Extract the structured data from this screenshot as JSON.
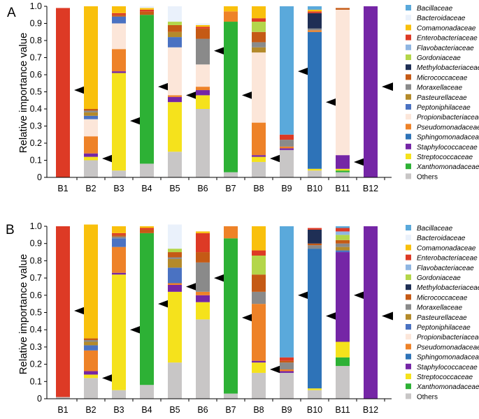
{
  "figure": {
    "panels": [
      {
        "letter": "A"
      },
      {
        "letter": "B"
      }
    ],
    "ylabel": "Relative importance value",
    "legend_entries": [
      {
        "name": "Bacillaceae",
        "color": "#5aa9db"
      },
      {
        "name": "Bacteroidaceae",
        "color": "#eaf1fb"
      },
      {
        "name": "Comamonadaceae",
        "color": "#f9c00c"
      },
      {
        "name": "Enterobacteriaceae",
        "color": "#dd3a25"
      },
      {
        "name": "Flavobacteriaceae",
        "color": "#8fb6e2"
      },
      {
        "name": "Gordoniaceae",
        "color": "#b4d64a"
      },
      {
        "name": "Methylobacteriaceae",
        "color": "#1f2f55"
      },
      {
        "name": "Micrococcaceae",
        "color": "#c55a15"
      },
      {
        "name": "Moraxellaceae",
        "color": "#8a8a8a"
      },
      {
        "name": "Pasteurellaceae",
        "color": "#b48a2a"
      },
      {
        "name": "Peptoniphilaceae",
        "color": "#4a72c2"
      },
      {
        "name": "Propionibacteriaceae",
        "color": "#fce6d9"
      },
      {
        "name": "Pseudomonadaceae",
        "color": "#ee8228"
      },
      {
        "name": "Sphingomonadaceae",
        "color": "#2e73b8"
      },
      {
        "name": "Staphylococcaceae",
        "color": "#7526a6"
      },
      {
        "name": "Streptococcaceae",
        "color": "#f5e21c"
      },
      {
        "name": "Xanthomonadaceae",
        "color": "#2db135"
      },
      {
        "name": "Others",
        "color": "#c8c6c6"
      }
    ]
  },
  "chart_data": [
    {
      "type": "bar",
      "stacked": true,
      "title": "A",
      "xlabel": "",
      "ylabel": "Relative importance value",
      "ylim": [
        0,
        1
      ],
      "yticks": [
        "0",
        "0.1",
        "0.2",
        "0.3",
        "0.4",
        "0.5",
        "0.6",
        "0.7",
        "0.8",
        "0.9",
        "1.0"
      ],
      "categories": [
        "B1",
        "B2",
        "B3",
        "B4",
        "B5",
        "B6",
        "B7",
        "B8",
        "B9",
        "B10",
        "B11",
        "B12"
      ],
      "arrow_y": [
        0.51,
        0.11,
        0.33,
        0.53,
        0.48,
        0.74,
        0.48,
        0.11,
        0.62,
        0.44,
        0.09,
        0.53
      ],
      "series": [
        {
          "name": "Others",
          "values": [
            0,
            0.1,
            0.04,
            0.08,
            0.15,
            0.4,
            0.03,
            0.09,
            0.16,
            0.04,
            0.03,
            0
          ]
        },
        {
          "name": "Xanthomonadaceae",
          "values": [
            0,
            0,
            0,
            0.87,
            0,
            0,
            0.88,
            0,
            0,
            0,
            0.01,
            0
          ]
        },
        {
          "name": "Streptococcaceae",
          "values": [
            0,
            0.02,
            0.57,
            0,
            0.29,
            0.08,
            0,
            0.03,
            0,
            0.01,
            0.01,
            0
          ]
        },
        {
          "name": "Staphylococcaceae",
          "values": [
            0,
            0.02,
            0.01,
            0,
            0.03,
            0.03,
            0,
            0.01,
            0.01,
            0,
            0.08,
            1.0
          ]
        },
        {
          "name": "Sphingomonadaceae",
          "values": [
            0,
            0,
            0,
            0,
            0,
            0,
            0,
            0,
            0,
            0.8,
            0,
            0
          ]
        },
        {
          "name": "Pseudomonadaceae",
          "values": [
            0,
            0.1,
            0.13,
            0,
            0.01,
            0.02,
            0.06,
            0.19,
            0.01,
            0.01,
            0,
            0
          ]
        },
        {
          "name": "Propionibacteriaceae",
          "values": [
            0,
            0.1,
            0.15,
            0,
            0.28,
            0.13,
            0,
            0.41,
            0,
            0,
            0.85,
            0
          ]
        },
        {
          "name": "Peptoniphilaceae",
          "values": [
            0,
            0.02,
            0.04,
            0,
            0.06,
            0,
            0,
            0,
            0,
            0,
            0,
            0
          ]
        },
        {
          "name": "Pasteurellaceae",
          "values": [
            0,
            0.02,
            0,
            0,
            0.03,
            0,
            0,
            0.03,
            0,
            0,
            0,
            0
          ]
        },
        {
          "name": "Moraxellaceae",
          "values": [
            0,
            0.01,
            0,
            0,
            0,
            0.15,
            0,
            0.03,
            0.04,
            0.01,
            0,
            0
          ]
        },
        {
          "name": "Micrococcaceae",
          "values": [
            0,
            0.01,
            0.01,
            0.02,
            0.04,
            0.06,
            0,
            0.06,
            0,
            0,
            0.01,
            0
          ]
        },
        {
          "name": "Methylobacteriaceae",
          "values": [
            0,
            0,
            0,
            0,
            0,
            0,
            0,
            0,
            0,
            0.09,
            0,
            0
          ]
        },
        {
          "name": "Gordoniaceae",
          "values": [
            0,
            0,
            0,
            0,
            0.02,
            0,
            0,
            0.06,
            0,
            0,
            0,
            0
          ]
        },
        {
          "name": "Flavobacteriaceae",
          "values": [
            0,
            0,
            0,
            0,
            0,
            0,
            0,
            0,
            0,
            0,
            0,
            0
          ]
        },
        {
          "name": "Enterobacteriaceae",
          "values": [
            0.99,
            0,
            0.01,
            0.01,
            0,
            0.01,
            0,
            0.02,
            0.03,
            0.01,
            0,
            0
          ]
        },
        {
          "name": "Comamonadaceae",
          "values": [
            0,
            0.6,
            0.04,
            0.01,
            0,
            0.01,
            0.03,
            0.07,
            0,
            0.01,
            0,
            0
          ]
        },
        {
          "name": "Bacteroidaceae",
          "values": [
            0,
            0,
            0,
            0.01,
            0.09,
            0.01,
            0,
            0,
            0,
            0,
            0,
            0
          ]
        },
        {
          "name": "Bacillaceae",
          "values": [
            0,
            0,
            0,
            0,
            0,
            0,
            0,
            0,
            0.75,
            0.02,
            0,
            0
          ]
        }
      ]
    },
    {
      "type": "bar",
      "stacked": true,
      "title": "B",
      "xlabel": "",
      "ylabel": "Relative importance value",
      "ylim": [
        0,
        1
      ],
      "yticks": [
        "0",
        "0.1",
        "0.2",
        "0.3",
        "0.4",
        "0.5",
        "0.6",
        "0.7",
        "0.8",
        "0.9",
        "1.0"
      ],
      "categories": [
        "B1",
        "B2",
        "B3",
        "B4",
        "B5",
        "B6",
        "B7",
        "B8",
        "B9",
        "B10",
        "B11",
        "B12"
      ],
      "arrow_y": [
        0.51,
        0.12,
        0.4,
        0.55,
        0.65,
        0.7,
        0.47,
        0.17,
        0.6,
        0.48,
        0.6,
        0.48
      ],
      "series": [
        {
          "name": "Others",
          "values": [
            0.01,
            0.12,
            0.05,
            0.08,
            0.21,
            0.46,
            0.03,
            0.15,
            0.15,
            0.05,
            0.19,
            0
          ]
        },
        {
          "name": "Xanthomonadaceae",
          "values": [
            0,
            0,
            0,
            0.88,
            0,
            0,
            0.9,
            0,
            0,
            0,
            0.05,
            0
          ]
        },
        {
          "name": "Streptococcaceae",
          "values": [
            0,
            0.02,
            0.67,
            0,
            0.41,
            0.1,
            0,
            0.06,
            0,
            0.01,
            0.09,
            0
          ]
        },
        {
          "name": "Staphylococcaceae",
          "values": [
            0,
            0.02,
            0.01,
            0,
            0.04,
            0.04,
            0,
            0.01,
            0.01,
            0,
            0.52,
            1.0
          ]
        },
        {
          "name": "Sphingomonadaceae",
          "values": [
            0,
            0,
            0,
            0,
            0,
            0,
            0,
            0,
            0,
            0.81,
            0,
            0
          ]
        },
        {
          "name": "Pseudomonadaceae",
          "values": [
            0,
            0.12,
            0.15,
            0,
            0.01,
            0.02,
            0.07,
            0.33,
            0.01,
            0,
            0,
            0
          ]
        },
        {
          "name": "Propionibacteriaceae",
          "values": [
            0,
            0,
            0,
            0,
            0,
            0,
            0,
            0,
            0,
            0,
            0,
            0
          ]
        },
        {
          "name": "Peptoniphilaceae",
          "values": [
            0,
            0.03,
            0.05,
            0,
            0.09,
            0,
            0,
            0,
            0,
            0,
            0.01,
            0
          ]
        },
        {
          "name": "Pasteurellaceae",
          "values": [
            0,
            0.02,
            0,
            0,
            0.05,
            0,
            0,
            0,
            0,
            0,
            0.02,
            0
          ]
        },
        {
          "name": "Moraxellaceae",
          "values": [
            0,
            0.01,
            0.01,
            0,
            0.01,
            0.17,
            0,
            0.07,
            0.04,
            0.02,
            0.02,
            0
          ]
        },
        {
          "name": "Micrococcaceae",
          "values": [
            0,
            0.01,
            0.01,
            0.02,
            0.03,
            0.06,
            0,
            0.1,
            0.01,
            0.01,
            0.02,
            0
          ]
        },
        {
          "name": "Methylobacteriaceae",
          "values": [
            0,
            0,
            0,
            0,
            0,
            0,
            0,
            0,
            0,
            0.08,
            0,
            0
          ]
        },
        {
          "name": "Gordoniaceae",
          "values": [
            0,
            0,
            0,
            0,
            0.02,
            0,
            0,
            0.11,
            0,
            0,
            0.03,
            0
          ]
        },
        {
          "name": "Flavobacteriaceae",
          "values": [
            0,
            0,
            0,
            0,
            0,
            0,
            0,
            0,
            0,
            0,
            0.02,
            0
          ]
        },
        {
          "name": "Enterobacteriaceae",
          "values": [
            0.99,
            0,
            0.01,
            0.01,
            0,
            0.11,
            0,
            0.03,
            0.02,
            0.01,
            0.02,
            0
          ]
        },
        {
          "name": "Comamonadaceae",
          "values": [
            0,
            0.66,
            0.04,
            0.01,
            0,
            0.01,
            0,
            0.14,
            0,
            0,
            0,
            0
          ]
        },
        {
          "name": "Bacteroidaceae",
          "values": [
            0,
            0,
            0,
            0,
            0.14,
            0,
            0,
            0,
            0,
            0,
            0,
            0
          ]
        },
        {
          "name": "Bacillaceae",
          "values": [
            0,
            0,
            0,
            0,
            0,
            0,
            0,
            0,
            0.76,
            0,
            0.01,
            0
          ]
        }
      ]
    }
  ]
}
